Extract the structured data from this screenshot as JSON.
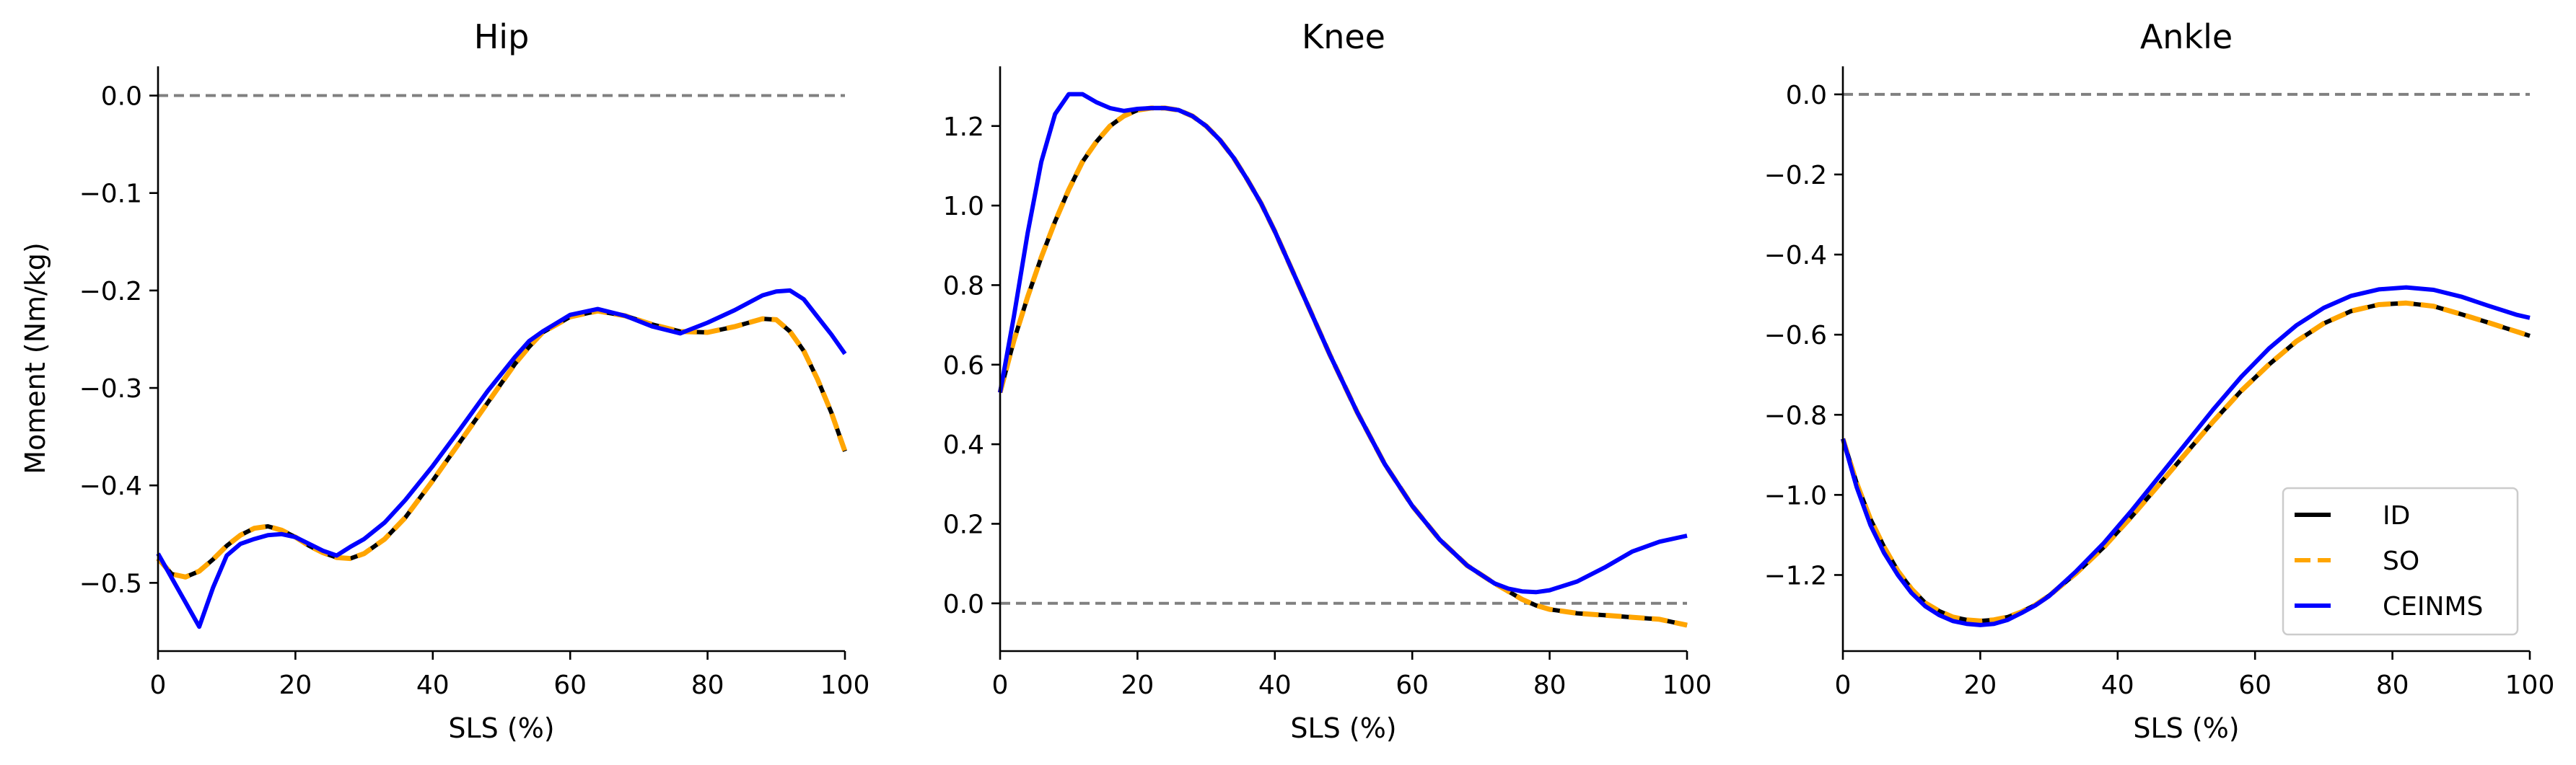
{
  "figure": {
    "ylabel": "Moment (Nm/kg)"
  },
  "legend": {
    "entries": [
      {
        "label": "ID",
        "color": "#000000",
        "style": "solid"
      },
      {
        "label": "SO",
        "color": "#FFA500",
        "style": "dashed"
      },
      {
        "label": "CEINMS",
        "color": "#0000FF",
        "style": "solid"
      }
    ],
    "placement": "lower-right of Ankle panel"
  },
  "chart_data": [
    {
      "type": "line",
      "title": "Hip",
      "xlabel": "SLS (%)",
      "ylabel": "Moment (Nm/kg)",
      "xlim": [
        0,
        100
      ],
      "ylim": [
        -0.57,
        0.03
      ],
      "xticks": [
        "0",
        "20",
        "40",
        "60",
        "80",
        "100"
      ],
      "yticks": [
        "0.0",
        "−0.1",
        "−0.2",
        "−0.3",
        "−0.4",
        "−0.5"
      ],
      "zero_line": 0,
      "grid": false,
      "x": [
        0,
        2,
        4,
        6,
        8,
        10,
        12,
        14,
        16,
        18,
        20,
        22,
        24,
        26,
        28,
        30,
        33,
        36,
        40,
        44,
        48,
        52,
        54,
        56,
        60,
        64,
        68,
        72,
        76,
        80,
        84,
        88,
        90,
        92,
        94,
        96,
        98,
        100
      ],
      "series": [
        {
          "name": "ID",
          "color": "#000000",
          "style": "solid",
          "values": [
            -0.475,
            -0.491,
            -0.494,
            -0.488,
            -0.476,
            -0.462,
            -0.451,
            -0.444,
            -0.442,
            -0.446,
            -0.453,
            -0.462,
            -0.469,
            -0.474,
            -0.475,
            -0.47,
            -0.455,
            -0.433,
            -0.395,
            -0.355,
            -0.315,
            -0.275,
            -0.258,
            -0.243,
            -0.227,
            -0.221,
            -0.226,
            -0.235,
            -0.242,
            -0.243,
            -0.237,
            -0.229,
            -0.23,
            -0.242,
            -0.262,
            -0.291,
            -0.325,
            -0.365
          ]
        },
        {
          "name": "SO",
          "color": "#FFA500",
          "style": "dashed",
          "values": [
            -0.475,
            -0.491,
            -0.494,
            -0.488,
            -0.476,
            -0.462,
            -0.451,
            -0.444,
            -0.442,
            -0.446,
            -0.453,
            -0.462,
            -0.469,
            -0.474,
            -0.475,
            -0.47,
            -0.455,
            -0.433,
            -0.395,
            -0.355,
            -0.315,
            -0.275,
            -0.258,
            -0.243,
            -0.227,
            -0.221,
            -0.226,
            -0.235,
            -0.242,
            -0.243,
            -0.237,
            -0.229,
            -0.23,
            -0.242,
            -0.262,
            -0.291,
            -0.325,
            -0.365
          ]
        },
        {
          "name": "CEINMS",
          "color": "#0000FF",
          "style": "solid",
          "values": [
            -0.47,
            -0.495,
            -0.52,
            -0.545,
            -0.505,
            -0.472,
            -0.46,
            -0.455,
            -0.451,
            -0.45,
            -0.453,
            -0.46,
            -0.467,
            -0.472,
            -0.463,
            -0.455,
            -0.438,
            -0.415,
            -0.38,
            -0.342,
            -0.303,
            -0.268,
            -0.252,
            -0.242,
            -0.225,
            -0.219,
            -0.226,
            -0.237,
            -0.244,
            -0.233,
            -0.22,
            -0.205,
            -0.201,
            -0.2,
            -0.209,
            -0.227,
            -0.245,
            -0.265
          ]
        }
      ]
    },
    {
      "type": "line",
      "title": "Knee",
      "xlabel": "SLS (%)",
      "xlim": [
        0,
        100
      ],
      "ylim": [
        -0.12,
        1.35
      ],
      "xticks": [
        "0",
        "20",
        "40",
        "60",
        "80",
        "100"
      ],
      "yticks": [
        "0.0",
        "0.2",
        "0.4",
        "0.6",
        "0.8",
        "1.0",
        "1.2"
      ],
      "zero_line": 0,
      "grid": false,
      "x": [
        0,
        2,
        4,
        6,
        8,
        10,
        12,
        14,
        16,
        18,
        20,
        22,
        24,
        26,
        28,
        30,
        32,
        34,
        36,
        38,
        40,
        44,
        48,
        52,
        56,
        60,
        64,
        68,
        72,
        74,
        76,
        78,
        80,
        84,
        88,
        92,
        96,
        100
      ],
      "series": [
        {
          "name": "ID",
          "color": "#000000",
          "style": "solid",
          "values": [
            0.53,
            0.66,
            0.77,
            0.87,
            0.96,
            1.04,
            1.11,
            1.16,
            1.2,
            1.225,
            1.24,
            1.245,
            1.245,
            1.24,
            1.225,
            1.2,
            1.165,
            1.12,
            1.065,
            1.005,
            0.935,
            0.78,
            0.625,
            0.48,
            0.35,
            0.245,
            0.16,
            0.095,
            0.05,
            0.03,
            0.01,
            -0.005,
            -0.015,
            -0.025,
            -0.03,
            -0.035,
            -0.04,
            -0.055
          ]
        },
        {
          "name": "SO",
          "color": "#FFA500",
          "style": "dashed",
          "values": [
            0.53,
            0.66,
            0.77,
            0.87,
            0.96,
            1.04,
            1.11,
            1.16,
            1.2,
            1.225,
            1.24,
            1.245,
            1.245,
            1.24,
            1.225,
            1.2,
            1.165,
            1.12,
            1.065,
            1.005,
            0.935,
            0.78,
            0.625,
            0.48,
            0.35,
            0.245,
            0.16,
            0.095,
            0.05,
            0.03,
            0.01,
            -0.005,
            -0.015,
            -0.025,
            -0.03,
            -0.035,
            -0.04,
            -0.055
          ]
        },
        {
          "name": "CEINMS",
          "color": "#0000FF",
          "style": "solid",
          "values": [
            0.53,
            0.72,
            0.93,
            1.11,
            1.23,
            1.28,
            1.28,
            1.26,
            1.245,
            1.238,
            1.243,
            1.245,
            1.245,
            1.24,
            1.225,
            1.2,
            1.165,
            1.12,
            1.065,
            1.005,
            0.935,
            0.78,
            0.625,
            0.48,
            0.35,
            0.245,
            0.16,
            0.095,
            0.05,
            0.037,
            0.03,
            0.028,
            0.033,
            0.055,
            0.09,
            0.13,
            0.155,
            0.17
          ]
        }
      ]
    },
    {
      "type": "line",
      "title": "Ankle",
      "xlabel": "SLS (%)",
      "xlim": [
        0,
        100
      ],
      "ylim": [
        -1.39,
        0.07
      ],
      "xticks": [
        "0",
        "20",
        "40",
        "60",
        "80",
        "100"
      ],
      "yticks": [
        "0.0",
        "−0.2",
        "−0.4",
        "−0.6",
        "−0.8",
        "−1.0",
        "−1.2"
      ],
      "zero_line": 0,
      "grid": false,
      "x": [
        0,
        2,
        4,
        6,
        8,
        10,
        12,
        14,
        16,
        18,
        20,
        22,
        24,
        26,
        28,
        30,
        34,
        38,
        42,
        46,
        50,
        54,
        58,
        62,
        66,
        70,
        74,
        78,
        82,
        86,
        90,
        94,
        98,
        100
      ],
      "series": [
        {
          "name": "ID",
          "color": "#000000",
          "style": "solid",
          "values": [
            -0.86,
            -0.97,
            -1.06,
            -1.13,
            -1.19,
            -1.235,
            -1.27,
            -1.29,
            -1.305,
            -1.312,
            -1.315,
            -1.312,
            -1.305,
            -1.292,
            -1.275,
            -1.252,
            -1.195,
            -1.13,
            -1.055,
            -0.975,
            -0.895,
            -0.815,
            -0.74,
            -0.675,
            -0.617,
            -0.572,
            -0.541,
            -0.525,
            -0.521,
            -0.529,
            -0.549,
            -0.57,
            -0.592,
            -0.603
          ]
        },
        {
          "name": "SO",
          "color": "#FFA500",
          "style": "dashed",
          "values": [
            -0.86,
            -0.97,
            -1.06,
            -1.13,
            -1.19,
            -1.235,
            -1.27,
            -1.29,
            -1.305,
            -1.312,
            -1.315,
            -1.312,
            -1.305,
            -1.292,
            -1.275,
            -1.252,
            -1.195,
            -1.13,
            -1.055,
            -0.975,
            -0.895,
            -0.815,
            -0.74,
            -0.675,
            -0.617,
            -0.572,
            -0.541,
            -0.525,
            -0.521,
            -0.529,
            -0.549,
            -0.57,
            -0.592,
            -0.603
          ]
        },
        {
          "name": "CEINMS",
          "color": "#0000FF",
          "style": "solid",
          "values": [
            -0.86,
            -0.98,
            -1.075,
            -1.145,
            -1.2,
            -1.245,
            -1.278,
            -1.3,
            -1.315,
            -1.322,
            -1.325,
            -1.322,
            -1.312,
            -1.295,
            -1.276,
            -1.253,
            -1.19,
            -1.12,
            -1.04,
            -0.955,
            -0.87,
            -0.785,
            -0.705,
            -0.635,
            -0.577,
            -0.533,
            -0.503,
            -0.487,
            -0.482,
            -0.488,
            -0.505,
            -0.528,
            -0.55,
            -0.558
          ]
        }
      ]
    }
  ]
}
